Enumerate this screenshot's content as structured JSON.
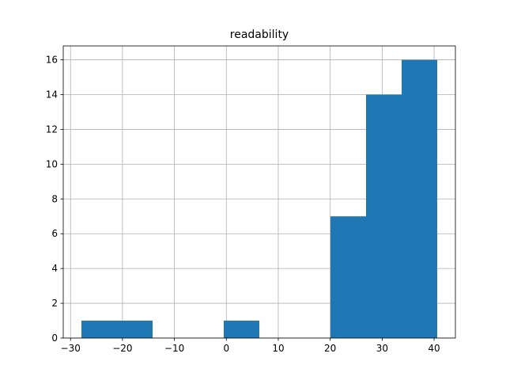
{
  "chart_data": {
    "type": "histogram",
    "title": "readability",
    "bins": [
      -27.9,
      -21.05,
      -14.2,
      -7.35,
      -0.5,
      6.35,
      13.2,
      20.05,
      26.9,
      33.75,
      40.6
    ],
    "values": [
      1,
      1,
      0,
      0,
      1,
      0,
      0,
      7,
      14,
      16
    ],
    "color": "#1f77b4",
    "xlim": [
      -31.4,
      44.1
    ],
    "xticks": [
      {
        "value": -30,
        "label": "−30"
      },
      {
        "value": -20,
        "label": "−20"
      },
      {
        "value": -10,
        "label": "−10"
      },
      0,
      10,
      20,
      30,
      40
    ],
    "ylim": [
      0,
      16.8
    ],
    "yticks": [
      0,
      2,
      4,
      6,
      8,
      10,
      12,
      14,
      16
    ],
    "grid": true
  }
}
